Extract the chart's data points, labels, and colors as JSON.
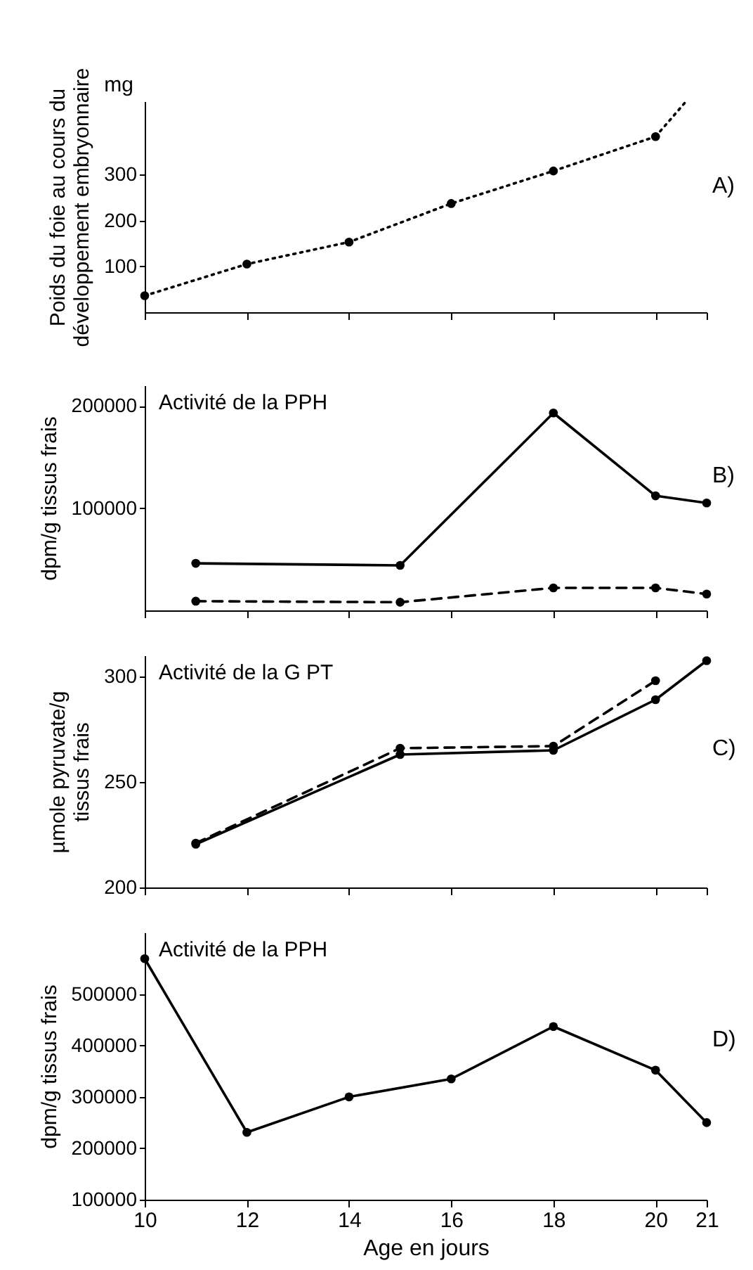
{
  "chart_data": [
    {
      "type": "line",
      "ylabel": "Poids du foie au cours du\ndéveloppement embryonnaire",
      "annotations": [
        "mg",
        "A)"
      ],
      "xlim": [
        10,
        21
      ],
      "xticks": [
        10,
        12,
        14,
        16,
        18,
        20,
        21
      ],
      "ylim": [
        0,
        460
      ],
      "yticks": [
        100,
        200,
        300
      ],
      "tick_labels": "y",
      "grid": false,
      "marker": "circle",
      "series": [
        {
          "color": "#000000",
          "line_style": "dotted",
          "x": [
            10,
            12,
            14,
            16,
            18,
            20
          ],
          "values": [
            36,
            105,
            153,
            237,
            308,
            383
          ]
        },
        {
          "color": "#000000",
          "line_style": "dotted",
          "marker": "none",
          "x": [
            20,
            20.6
          ],
          "values": [
            383,
            460
          ]
        }
      ]
    },
    {
      "type": "line",
      "title": "Activité de la PPH",
      "ylabel": "dpm/g tissus frais",
      "annotations": [
        "B)"
      ],
      "xlim": [
        10,
        21
      ],
      "xticks": [
        10,
        12,
        14,
        16,
        18,
        20,
        21
      ],
      "ylim": [
        0,
        220000
      ],
      "yticks": [
        100000,
        200000
      ],
      "tick_labels": "y",
      "grid": false,
      "marker": "circle",
      "series": [
        {
          "color": "#000000",
          "line_style": "solid",
          "x": [
            11,
            15,
            18,
            20,
            21
          ],
          "values": [
            46000,
            44000,
            193000,
            112000,
            105000
          ]
        },
        {
          "color": "#000000",
          "line_style": "dashed",
          "x": [
            11,
            15,
            18,
            20,
            21
          ],
          "values": [
            9000,
            8000,
            22000,
            22000,
            16000
          ]
        }
      ]
    },
    {
      "type": "line",
      "title": "Activité de la G PT",
      "ylabel": "µmole pyruvate/g\ntissus frais",
      "annotations": [
        "C)"
      ],
      "xlim": [
        10,
        21
      ],
      "xticks": [
        10,
        12,
        14,
        16,
        18,
        20,
        21
      ],
      "ylim": [
        200,
        310
      ],
      "yticks": [
        200,
        250,
        300
      ],
      "tick_labels": "y",
      "grid": false,
      "marker": "circle",
      "series": [
        {
          "color": "#000000",
          "line_style": "solid",
          "x": [
            11,
            15,
            18,
            20,
            21
          ],
          "values": [
            220.5,
            263,
            265,
            289,
            307.5
          ]
        },
        {
          "color": "#000000",
          "line_style": "dashed",
          "x": [
            11,
            15,
            18,
            20
          ],
          "values": [
            221,
            266,
            267,
            298
          ]
        }
      ]
    },
    {
      "type": "line",
      "title": "Activité de la PPH",
      "ylabel": "dpm/g tissus frais",
      "xlabel": "Age en jours",
      "annotations": [
        "D)"
      ],
      "xlim": [
        10,
        21
      ],
      "xticks": [
        10,
        12,
        14,
        16,
        18,
        20,
        21
      ],
      "ylim": [
        100000,
        620000
      ],
      "yticks": [
        100000,
        200000,
        300000,
        400000,
        500000
      ],
      "grid": false,
      "marker": "circle",
      "series": [
        {
          "color": "#000000",
          "line_style": "solid",
          "x": [
            10,
            12,
            14,
            16,
            18,
            20,
            21
          ],
          "values": [
            569000,
            231000,
            300000,
            335000,
            437000,
            352000,
            250000
          ]
        }
      ]
    }
  ]
}
